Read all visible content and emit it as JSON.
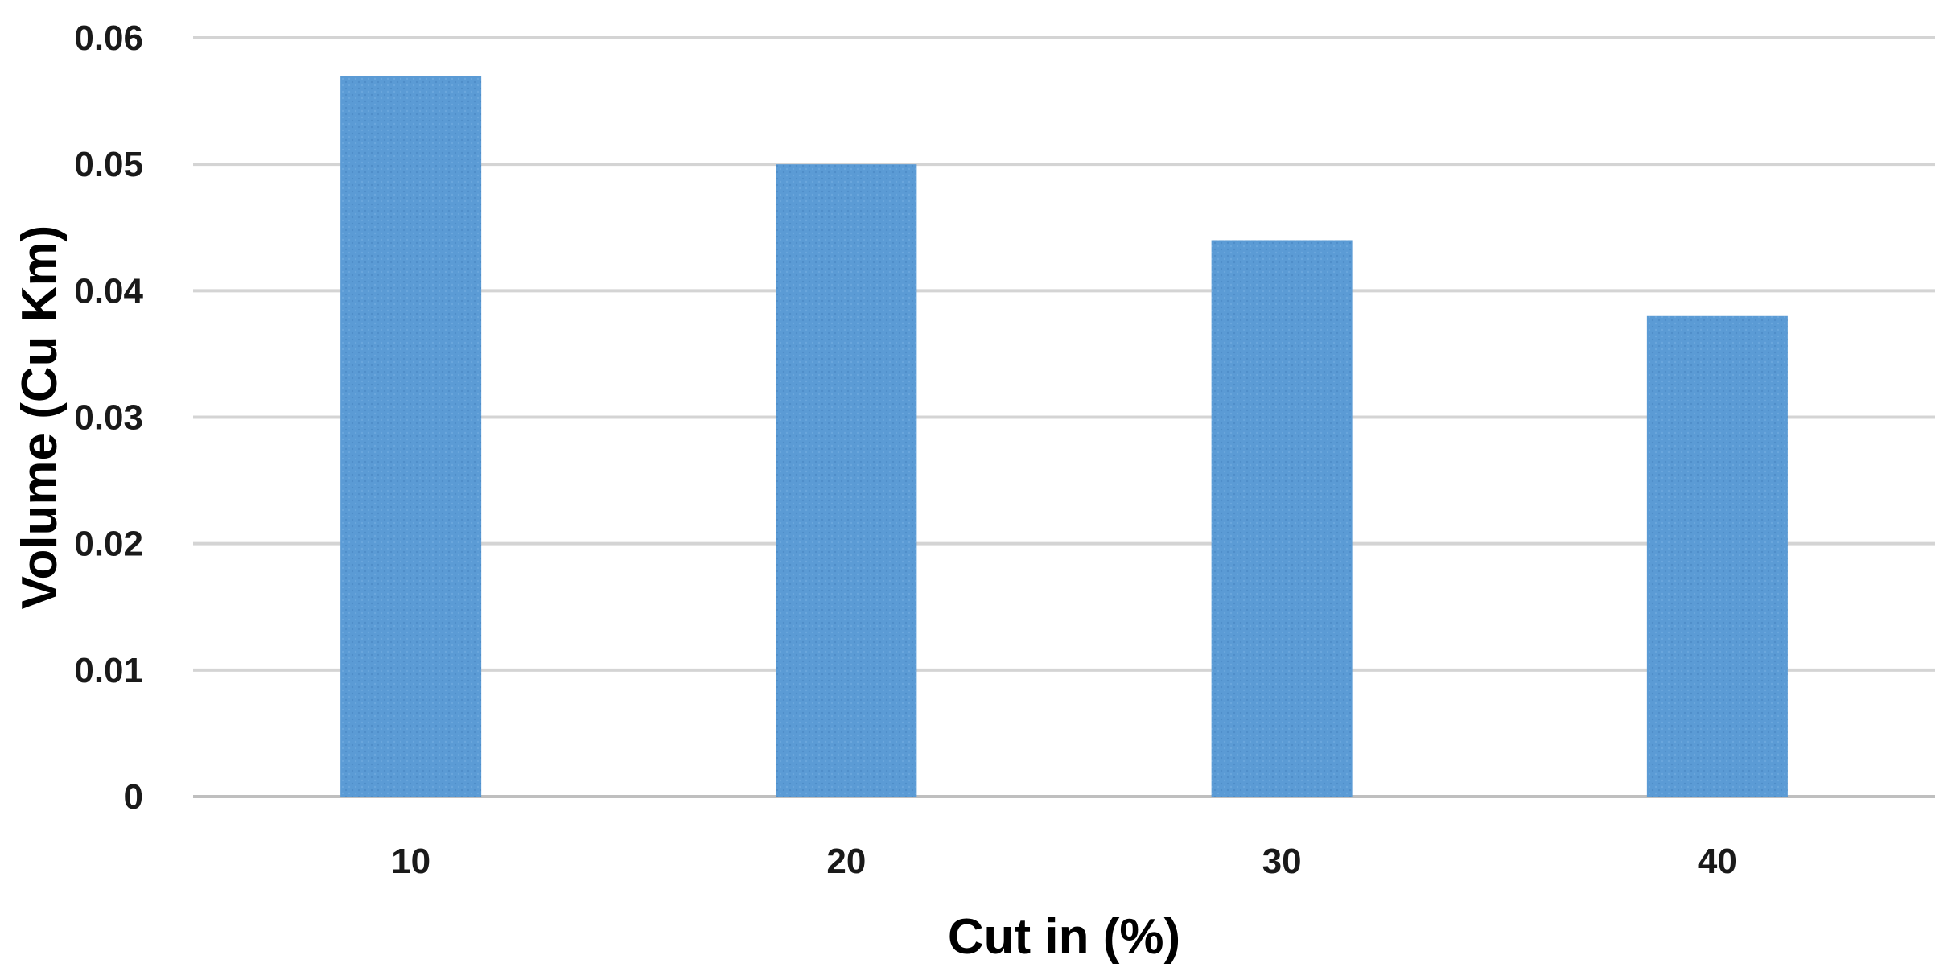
{
  "chart_data": {
    "type": "bar",
    "title": "",
    "xlabel": "Cut in (%)",
    "ylabel": "Volume (Cu Km)",
    "categories": [
      "10",
      "20",
      "30",
      "40"
    ],
    "values": [
      0.057,
      0.05,
      0.044,
      0.038
    ],
    "ylim": [
      0,
      0.06
    ],
    "yticks": [
      "0",
      "0.01",
      "0.02",
      "0.03",
      "0.04",
      "0.05",
      "0.06"
    ],
    "grid": true,
    "legend": "none",
    "bar_color": "#5b9bd5"
  }
}
